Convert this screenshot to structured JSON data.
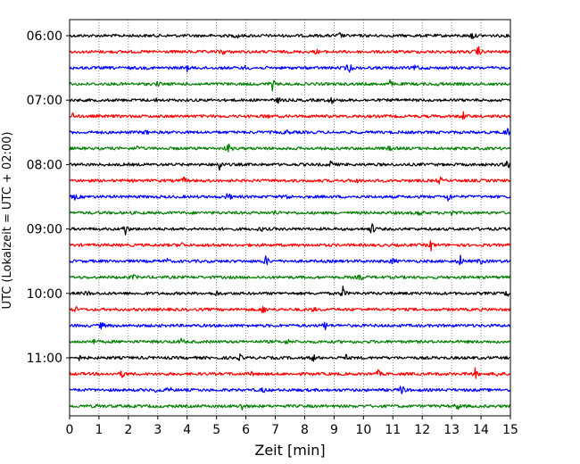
{
  "chart_data": {
    "type": "line",
    "title": "",
    "xlabel": "Zeit  [min]",
    "ylabel": "UTC (Lokalzeit = UTC + 02:00)",
    "xlim": [
      0,
      15
    ],
    "x_ticks": [
      0,
      1,
      2,
      3,
      4,
      5,
      6,
      7,
      8,
      9,
      10,
      11,
      12,
      13,
      14,
      15
    ],
    "y_tick_labels": [
      "06:00",
      "07:00",
      "08:00",
      "09:00",
      "10:00",
      "11:00"
    ],
    "grid": "vertical dotted at each minute",
    "trace_interval_min": 15,
    "trace_start": "06:00",
    "trace_colors": [
      "#000000",
      "#ff0000",
      "#0000ff",
      "#008000"
    ],
    "series": [
      {
        "start": "06:00",
        "color": "#000000",
        "events": [
          {
            "t": 5.7,
            "a": 0.4
          },
          {
            "t": 9.2,
            "a": 0.4
          },
          {
            "t": 13.7,
            "a": 0.6
          }
        ]
      },
      {
        "start": "06:15",
        "color": "#ff0000",
        "events": [
          {
            "t": 5.2,
            "a": 0.6
          },
          {
            "t": 8.4,
            "a": 0.3
          },
          {
            "t": 13.9,
            "a": 1.0
          }
        ]
      },
      {
        "start": "06:30",
        "color": "#0000ff",
        "events": [
          {
            "t": 4.0,
            "a": 0.4
          },
          {
            "t": 6.0,
            "a": 0.3
          },
          {
            "t": 9.5,
            "a": 1.0
          },
          {
            "t": 11.8,
            "a": 0.6
          }
        ]
      },
      {
        "start": "06:45",
        "color": "#008000",
        "events": [
          {
            "t": 3.0,
            "a": 0.3
          },
          {
            "t": 6.9,
            "a": 0.9
          },
          {
            "t": 10.9,
            "a": 0.5
          },
          {
            "t": 12.6,
            "a": 0.3
          }
        ]
      },
      {
        "start": "07:00",
        "color": "#000000",
        "events": [
          {
            "t": 3.0,
            "a": 0.3
          },
          {
            "t": 7.1,
            "a": 0.4
          },
          {
            "t": 8.9,
            "a": 0.6
          }
        ]
      },
      {
        "start": "07:15",
        "color": "#ff0000",
        "events": [
          {
            "t": 0.1,
            "a": 0.4
          },
          {
            "t": 6.7,
            "a": 0.3
          },
          {
            "t": 13.4,
            "a": 0.6
          }
        ]
      },
      {
        "start": "07:30",
        "color": "#0000ff",
        "events": [
          {
            "t": 2.6,
            "a": 0.3
          },
          {
            "t": 7.4,
            "a": 0.3
          },
          {
            "t": 14.9,
            "a": 0.7
          }
        ]
      },
      {
        "start": "07:45",
        "color": "#008000",
        "events": [
          {
            "t": 2.3,
            "a": 0.3
          },
          {
            "t": 5.4,
            "a": 0.8
          },
          {
            "t": 10.9,
            "a": 0.3
          }
        ]
      },
      {
        "start": "08:00",
        "color": "#000000",
        "events": [
          {
            "t": 5.1,
            "a": 1.0
          },
          {
            "t": 8.9,
            "a": 0.6
          },
          {
            "t": 14.9,
            "a": 0.7
          }
        ]
      },
      {
        "start": "08:15",
        "color": "#ff0000",
        "events": [
          {
            "t": 3.9,
            "a": 0.5
          },
          {
            "t": 9.8,
            "a": 0.4
          },
          {
            "t": 12.6,
            "a": 0.6
          }
        ]
      },
      {
        "start": "08:30",
        "color": "#0000ff",
        "events": [
          {
            "t": 0.2,
            "a": 0.5
          },
          {
            "t": 5.4,
            "a": 0.8
          },
          {
            "t": 7.4,
            "a": 0.5
          },
          {
            "t": 12.9,
            "a": 0.9
          }
        ]
      },
      {
        "start": "08:45",
        "color": "#008000",
        "events": [
          {
            "t": 7.0,
            "a": 0.4
          },
          {
            "t": 11.9,
            "a": 0.5
          },
          {
            "t": 13.0,
            "a": 0.6
          }
        ]
      },
      {
        "start": "09:00",
        "color": "#000000",
        "events": [
          {
            "t": 1.9,
            "a": 0.9
          },
          {
            "t": 6.5,
            "a": 0.4
          },
          {
            "t": 10.3,
            "a": 1.0
          }
        ]
      },
      {
        "start": "09:15",
        "color": "#ff0000",
        "events": [
          {
            "t": 3.8,
            "a": 0.5
          },
          {
            "t": 4.8,
            "a": 0.4
          },
          {
            "t": 12.3,
            "a": 0.8
          }
        ]
      },
      {
        "start": "09:30",
        "color": "#0000ff",
        "events": [
          {
            "t": 3.3,
            "a": 0.4
          },
          {
            "t": 6.7,
            "a": 1.0
          },
          {
            "t": 11.0,
            "a": 0.5
          },
          {
            "t": 13.3,
            "a": 0.9
          },
          {
            "t": 14.0,
            "a": 0.5
          }
        ]
      },
      {
        "start": "09:45",
        "color": "#008000",
        "events": [
          {
            "t": 2.2,
            "a": 0.3
          },
          {
            "t": 9.9,
            "a": 0.5
          }
        ]
      },
      {
        "start": "10:00",
        "color": "#000000",
        "events": [
          {
            "t": 0.6,
            "a": 0.4
          },
          {
            "t": 5.0,
            "a": 0.4
          },
          {
            "t": 9.3,
            "a": 1.0
          },
          {
            "t": 14.9,
            "a": 0.5
          }
        ]
      },
      {
        "start": "10:15",
        "color": "#ff0000",
        "events": [
          {
            "t": 0.2,
            "a": 0.4
          },
          {
            "t": 6.6,
            "a": 0.8
          },
          {
            "t": 8.3,
            "a": 0.3
          }
        ]
      },
      {
        "start": "10:30",
        "color": "#0000ff",
        "events": [
          {
            "t": 1.1,
            "a": 0.6
          },
          {
            "t": 8.7,
            "a": 0.7
          }
        ]
      },
      {
        "start": "10:45",
        "color": "#008000",
        "events": [
          {
            "t": 0.8,
            "a": 0.4
          },
          {
            "t": 3.8,
            "a": 0.4
          },
          {
            "t": 7.4,
            "a": 0.4
          }
        ]
      },
      {
        "start": "11:00",
        "color": "#000000",
        "events": [
          {
            "t": 0.3,
            "a": 0.5
          },
          {
            "t": 5.8,
            "a": 0.4
          },
          {
            "t": 8.3,
            "a": 0.6
          },
          {
            "t": 9.4,
            "a": 0.4
          }
        ]
      },
      {
        "start": "11:15",
        "color": "#ff0000",
        "events": [
          {
            "t": 1.8,
            "a": 0.6
          },
          {
            "t": 6.2,
            "a": 0.3
          },
          {
            "t": 10.5,
            "a": 0.5
          },
          {
            "t": 13.8,
            "a": 0.8
          },
          {
            "t": 14.6,
            "a": 0.6
          }
        ]
      },
      {
        "start": "11:30",
        "color": "#0000ff",
        "events": [
          {
            "t": 3.0,
            "a": 0.6
          },
          {
            "t": 3.4,
            "a": 0.5
          },
          {
            "t": 6.6,
            "a": 0.4
          },
          {
            "t": 11.3,
            "a": 1.0
          }
        ]
      },
      {
        "start": "11:45",
        "color": "#008000",
        "events": [
          {
            "t": 1.0,
            "a": 0.3
          },
          {
            "t": 5.9,
            "a": 0.9
          },
          {
            "t": 13.2,
            "a": 0.6
          }
        ]
      }
    ]
  }
}
